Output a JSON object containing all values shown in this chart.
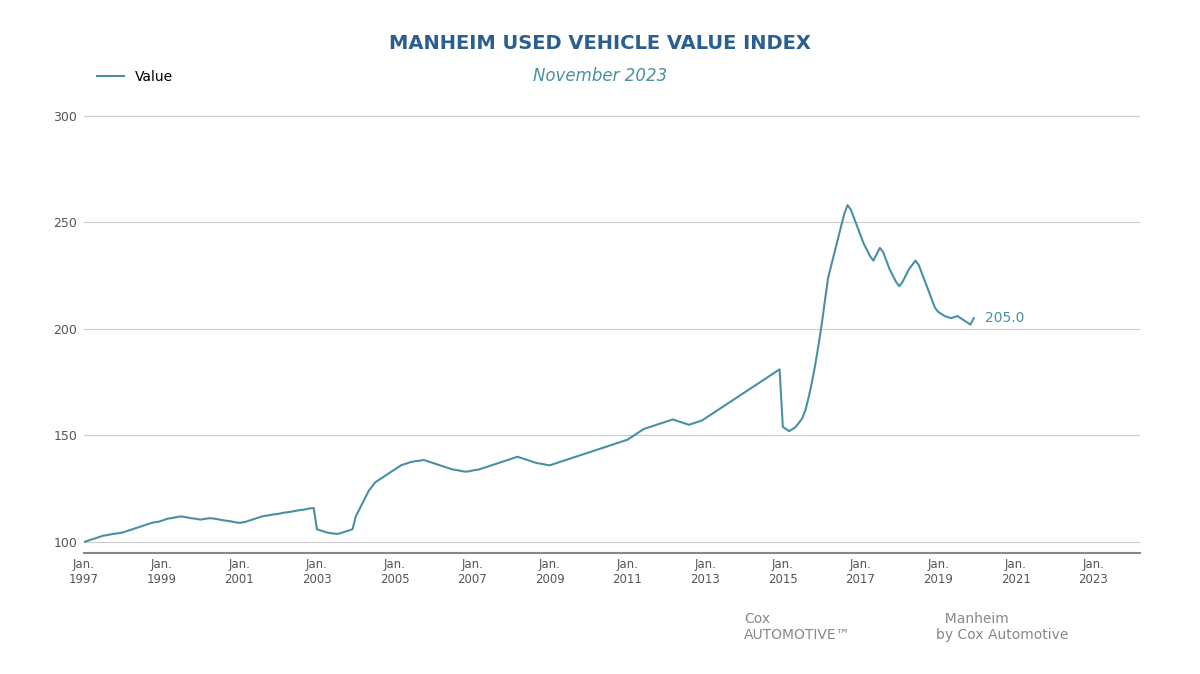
{
  "title": "MANHEIM USED VEHICLE VALUE INDEX",
  "subtitle": "November 2023",
  "line_color": "#4a90a4",
  "line_width": 1.5,
  "background_color": "#ffffff",
  "ylabel_color": "#555555",
  "grid_color": "#cccccc",
  "end_label": "205.0",
  "end_label_color": "#4a90a4",
  "yticks": [
    100,
    150,
    200,
    250,
    300
  ],
  "xtick_years": [
    1997,
    1999,
    2001,
    2003,
    2005,
    2007,
    2009,
    2011,
    2013,
    2015,
    2017,
    2019,
    2021,
    2023
  ],
  "ylim": [
    95,
    310
  ],
  "title_color": "#2a5f8f",
  "subtitle_color": "#4a90a4",
  "values": [
    100.0,
    100.5,
    101.0,
    101.5,
    102.0,
    102.5,
    103.0,
    103.2,
    103.5,
    103.8,
    104.0,
    104.2,
    104.5,
    105.0,
    105.5,
    106.0,
    106.5,
    107.0,
    107.5,
    108.0,
    108.5,
    109.0,
    109.3,
    109.5,
    110.0,
    110.5,
    111.0,
    111.2,
    111.5,
    111.8,
    112.0,
    111.8,
    111.5,
    111.2,
    111.0,
    110.8,
    110.5,
    110.8,
    111.0,
    111.2,
    111.0,
    110.8,
    110.5,
    110.2,
    110.0,
    109.8,
    109.5,
    109.2,
    109.0,
    109.2,
    109.5,
    110.0,
    110.5,
    111.0,
    111.5,
    112.0,
    112.3,
    112.5,
    112.8,
    113.0,
    113.2,
    113.5,
    113.8,
    114.0,
    114.2,
    114.5,
    114.8,
    115.0,
    115.2,
    115.5,
    115.8,
    116.0,
    106.0,
    105.5,
    105.0,
    104.5,
    104.2,
    104.0,
    103.8,
    104.0,
    104.5,
    105.0,
    105.5,
    106.0,
    112.0,
    115.0,
    118.0,
    121.0,
    124.0,
    126.0,
    128.0,
    129.0,
    130.0,
    131.0,
    132.0,
    133.0,
    134.0,
    135.0,
    136.0,
    136.5,
    137.0,
    137.5,
    137.8,
    138.0,
    138.2,
    138.5,
    138.0,
    137.5,
    137.0,
    136.5,
    136.0,
    135.5,
    135.0,
    134.5,
    134.0,
    133.8,
    133.5,
    133.2,
    133.0,
    133.2,
    133.5,
    133.8,
    134.0,
    134.5,
    135.0,
    135.5,
    136.0,
    136.5,
    137.0,
    137.5,
    138.0,
    138.5,
    139.0,
    139.5,
    140.0,
    139.5,
    139.0,
    138.5,
    138.0,
    137.5,
    137.0,
    136.8,
    136.5,
    136.2,
    136.0,
    136.5,
    137.0,
    137.5,
    138.0,
    138.5,
    139.0,
    139.5,
    140.0,
    140.5,
    141.0,
    141.5,
    142.0,
    142.5,
    143.0,
    143.5,
    144.0,
    144.5,
    145.0,
    145.5,
    146.0,
    146.5,
    147.0,
    147.5,
    148.0,
    149.0,
    150.0,
    151.0,
    152.0,
    153.0,
    153.5,
    154.0,
    154.5,
    155.0,
    155.5,
    156.0,
    156.5,
    157.0,
    157.5,
    157.0,
    156.5,
    156.0,
    155.5,
    155.0,
    155.5,
    156.0,
    156.5,
    157.0,
    158.0,
    159.0,
    160.0,
    161.0,
    162.0,
    163.0,
    164.0,
    165.0,
    166.0,
    167.0,
    168.0,
    169.0,
    170.0,
    171.0,
    172.0,
    173.0,
    174.0,
    175.0,
    176.0,
    177.0,
    178.0,
    179.0,
    180.0,
    181.0,
    154.0,
    153.0,
    152.0,
    153.0,
    154.0,
    156.0,
    158.0,
    162.0,
    168.0,
    175.0,
    183.0,
    192.0,
    202.0,
    213.0,
    224.0,
    230.0,
    236.0,
    242.0,
    248.0,
    254.0,
    258.0,
    256.0,
    252.0,
    248.0,
    244.0,
    240.0,
    237.0,
    234.0,
    232.0,
    235.0,
    238.0,
    236.0,
    232.0,
    228.0,
    225.0,
    222.0,
    220.0,
    222.0,
    225.0,
    228.0,
    230.0,
    232.0,
    230.0,
    226.0,
    222.0,
    218.0,
    214.0,
    210.0,
    208.0,
    207.0,
    206.0,
    205.5,
    205.0,
    205.5,
    206.0,
    205.0,
    204.0,
    203.0,
    202.0,
    205.0
  ]
}
